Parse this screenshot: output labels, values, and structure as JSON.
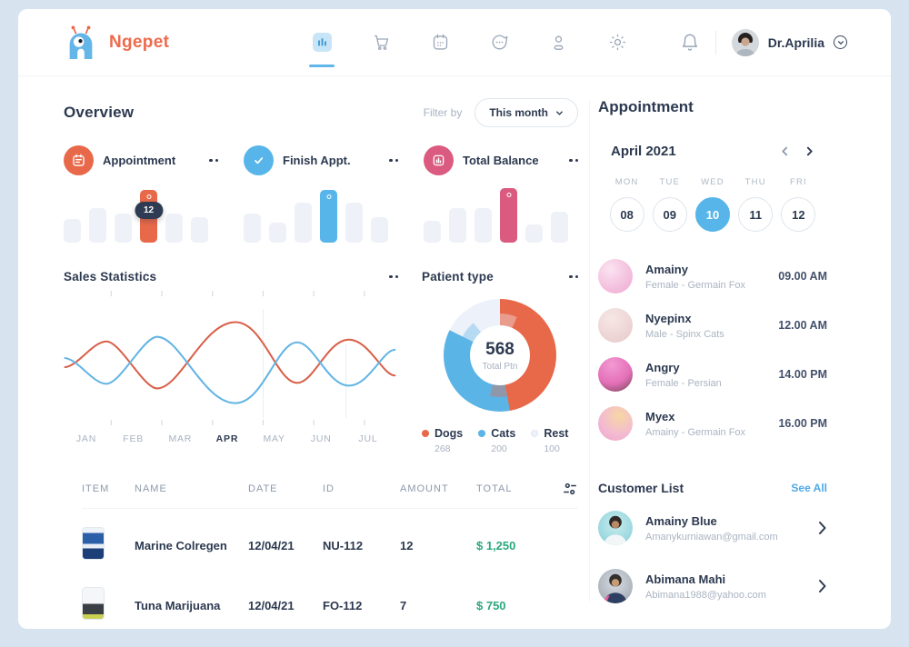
{
  "colors": {
    "brand_orange": "#ee6a4d",
    "accent_blue": "#57b5e9",
    "accent_pink": "#db5b80",
    "navy_text": "#2c3950",
    "muted_text": "#a8b2c1",
    "money_green": "#2aa87d",
    "link_blue": "#4da9e8",
    "frame_bg": "#d7e4f0"
  },
  "header": {
    "brand": "Ngepet",
    "nav": [
      {
        "name": "analytics",
        "active": true
      },
      {
        "name": "shop",
        "active": false
      },
      {
        "name": "schedule",
        "active": false
      },
      {
        "name": "messages",
        "active": false
      },
      {
        "name": "profile",
        "active": false
      },
      {
        "name": "settings",
        "active": false
      }
    ],
    "user": {
      "name": "Dr.Aprilia"
    }
  },
  "overview": {
    "title": "Overview",
    "filter": {
      "label": "Filter by",
      "value": "This month"
    },
    "stat_cards": [
      {
        "label": "Appointment",
        "color": "#e8694a",
        "icon": "calendar-icon",
        "bars": [
          26,
          38,
          32,
          58,
          32,
          28
        ],
        "highlight_index": 3,
        "badge": "12"
      },
      {
        "label": "Finish Appt.",
        "color": "#57b5e9",
        "icon": "check-icon",
        "bars": [
          32,
          22,
          44,
          58,
          44,
          28
        ],
        "highlight_index": 3
      },
      {
        "label": "Total Balance",
        "color": "#db5b80",
        "icon": "bar-chart-icon",
        "bars": [
          24,
          38,
          38,
          60,
          20,
          34
        ],
        "highlight_index": 3
      }
    ]
  },
  "sales": {
    "title": "Sales Statistics",
    "chart_data": {
      "type": "line",
      "x": [
        "JAN",
        "FEB",
        "MAR",
        "APR",
        "MAY",
        "JUN",
        "JUL"
      ],
      "active_month": "APR",
      "series": [
        {
          "name": "series-a",
          "color": "#d96049",
          "values": [
            48,
            64,
            32,
            88,
            42,
            72,
            44
          ]
        },
        {
          "name": "series-b",
          "color": "#63b4e4",
          "values": [
            52,
            36,
            68,
            12,
            58,
            28,
            56
          ]
        }
      ],
      "grid": false,
      "legend": "none"
    }
  },
  "patient_type": {
    "title": "Patient type",
    "chart_data": {
      "type": "donut",
      "total": "568",
      "total_label": "Total Ptn",
      "segments": [
        {
          "label": "Dogs",
          "value": "268",
          "color": "#e8684a"
        },
        {
          "label": "Cats",
          "value": "200",
          "color": "#5ab4e5"
        },
        {
          "label": "Rest",
          "value": "100",
          "color": "#edf1f9"
        }
      ]
    }
  },
  "table": {
    "headers": [
      "ITEM",
      "NAME",
      "DATE",
      "ID",
      "AMOUNT",
      "TOTAL"
    ],
    "rows": [
      {
        "name": "Marine Colregen",
        "date": "12/04/21",
        "id": "NU-112",
        "amount": "12",
        "total": "$ 1,250"
      },
      {
        "name": "Tuna Marijuana",
        "date": "12/04/21",
        "id": "FO-112",
        "amount": "7",
        "total": "$ 750"
      }
    ]
  },
  "sidebar": {
    "title": "Appointment",
    "calendar": {
      "month": "April 2021",
      "days": [
        "MON",
        "TUE",
        "WED",
        "THU",
        "FRI"
      ],
      "dates": [
        "08",
        "09",
        "10",
        "11",
        "12"
      ],
      "selected": "10"
    },
    "appointments": [
      {
        "name": "Amainy",
        "detail": "Female - Germain Fox",
        "time": "09.00 AM"
      },
      {
        "name": "Nyepinx",
        "detail": "Male - Spinx Cats",
        "time": "12.00 AM"
      },
      {
        "name": "Angry",
        "detail": "Female - Persian",
        "time": "14.00 PM"
      },
      {
        "name": "Myex",
        "detail": "Amainy - Germain Fox",
        "time": "16.00 PM"
      }
    ],
    "customer_list": {
      "title": "Customer List",
      "see_all": "See All",
      "items": [
        {
          "name": "Amainy Blue",
          "email": "Amanykurniawan@gmail.com"
        },
        {
          "name": "Abimana Mahi",
          "email": "Abimana1988@yahoo.com"
        }
      ]
    }
  }
}
